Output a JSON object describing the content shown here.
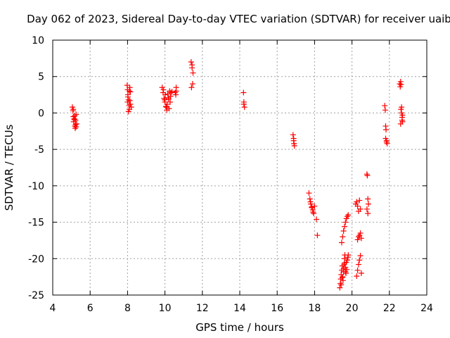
{
  "chart_data": {
    "type": "scatter",
    "title": "Day 062 of 2023, Sidereal Day-to-day VTEC variation (SDTVAR) for receiver uaib",
    "xlabel": "GPS time / hours",
    "ylabel": "SDTVAR / TECUs",
    "xlim": [
      4,
      24
    ],
    "ylim": [
      -25,
      10
    ],
    "xticks": [
      4,
      6,
      8,
      10,
      12,
      14,
      16,
      18,
      20,
      22,
      24
    ],
    "yticks": [
      -25,
      -20,
      -15,
      -10,
      -5,
      0,
      5,
      10
    ],
    "xtick_labels": [
      "4",
      "6",
      "8",
      "10",
      "12",
      "14",
      "16",
      "18",
      "20",
      "22",
      "24"
    ],
    "ytick_labels": [
      "-25",
      "-20",
      "-15",
      "-10",
      "-5",
      "0",
      "5",
      "10"
    ],
    "grid": true,
    "marker": "+",
    "color": "#ff0000",
    "series": [
      {
        "name": "SDTVAR",
        "x": [
          5.05,
          5.08,
          5.1,
          5.12,
          5.15,
          5.18,
          5.2,
          5.22,
          5.25,
          5.28,
          5.1,
          5.15,
          5.22,
          5.18,
          5.25,
          7.98,
          8.0,
          8.02,
          8.05,
          8.08,
          8.1,
          8.12,
          8.15,
          8.0,
          8.05,
          8.1,
          8.15,
          8.2,
          8.02,
          8.12,
          9.85,
          9.9,
          9.95,
          10.0,
          10.05,
          10.1,
          10.15,
          10.2,
          10.25,
          10.3,
          9.92,
          10.02,
          10.12,
          10.22,
          10.32,
          9.98,
          10.08,
          10.18,
          10.28,
          10.38,
          10.55,
          10.6,
          10.6,
          10.58,
          11.4,
          11.45,
          11.5,
          11.48,
          11.42,
          11.45,
          14.2,
          14.22,
          14.25,
          14.22,
          16.85,
          16.88,
          16.9,
          16.92,
          16.88,
          17.7,
          17.75,
          17.8,
          17.85,
          17.9,
          17.95,
          17.78,
          17.85,
          17.92,
          18.0,
          18.1,
          18.15,
          19.35,
          19.38,
          19.4,
          19.42,
          19.45,
          19.48,
          19.5,
          19.52,
          19.55,
          19.58,
          19.6,
          19.62,
          19.65,
          19.68,
          19.7,
          19.72,
          19.75,
          19.78,
          19.8,
          19.42,
          19.48,
          19.55,
          19.6,
          19.65,
          19.45,
          19.5,
          19.55,
          19.6,
          19.65,
          19.7,
          19.75,
          19.8,
          20.2,
          20.25,
          20.3,
          20.35,
          20.4,
          20.45,
          20.25,
          20.3,
          20.35,
          20.4,
          20.45,
          20.5,
          20.3,
          20.35,
          20.4,
          20.45,
          20.5,
          20.8,
          20.82,
          20.85,
          20.88,
          20.8,
          20.85,
          21.75,
          21.78,
          21.8,
          21.82,
          21.85,
          21.88,
          21.8,
          21.85,
          22.55,
          22.58,
          22.6,
          22.62,
          22.65,
          22.68,
          22.7,
          22.6,
          22.65,
          22.7,
          22.62,
          22.68
        ],
        "y": [
          0.8,
          0.3,
          -0.5,
          -1.2,
          -0.8,
          -1.8,
          -2.1,
          -1.0,
          -0.2,
          -1.5,
          0.5,
          -0.9,
          -1.6,
          -0.4,
          -1.9,
          3.8,
          3.2,
          2.5,
          1.8,
          1.0,
          0.5,
          3.5,
          2.9,
          1.5,
          0.2,
          3.0,
          1.2,
          0.8,
          2.2,
          1.7,
          3.5,
          2.8,
          2.0,
          1.5,
          0.9,
          0.4,
          2.6,
          1.9,
          3.0,
          2.3,
          3.2,
          2.5,
          1.2,
          0.6,
          2.8,
          1.8,
          0.8,
          2.1,
          1.5,
          2.9,
          2.8,
          3.5,
          3.0,
          2.5,
          7.0,
          6.2,
          5.5,
          4.0,
          3.5,
          6.6,
          2.8,
          1.5,
          0.8,
          1.2,
          -3.0,
          -3.8,
          -4.2,
          -4.5,
          -3.5,
          -11.0,
          -11.8,
          -12.5,
          -12.9,
          -13.3,
          -13.8,
          -12.2,
          -13.0,
          -13.6,
          -12.8,
          -14.6,
          -16.8,
          -24.0,
          -23.4,
          -22.8,
          -22.2,
          -21.6,
          -21.0,
          -22.5,
          -23.0,
          -21.8,
          -20.8,
          -20.0,
          -19.5,
          -21.2,
          -22.0,
          -20.5,
          -21.5,
          -20.2,
          -19.8,
          -19.5,
          -23.6,
          -22.6,
          -21.4,
          -20.6,
          -21.8,
          -17.8,
          -17.0,
          -16.2,
          -15.6,
          -15.0,
          -14.5,
          -14.2,
          -14.0,
          -12.5,
          -12.2,
          -12.8,
          -13.5,
          -12.0,
          -13.2,
          -22.4,
          -21.6,
          -20.8,
          -20.2,
          -19.6,
          -22.0,
          -17.4,
          -17.0,
          -16.8,
          -16.5,
          -17.2,
          -8.4,
          -8.6,
          -11.8,
          -12.5,
          -13.2,
          -13.8,
          1.0,
          0.4,
          -1.8,
          -2.3,
          -3.8,
          -4.2,
          -3.5,
          -4.0,
          4.0,
          3.6,
          4.3,
          0.5,
          0.0,
          -0.6,
          -1.2,
          -1.5,
          0.8,
          -0.3,
          3.9,
          -1.0
        ]
      }
    ]
  }
}
